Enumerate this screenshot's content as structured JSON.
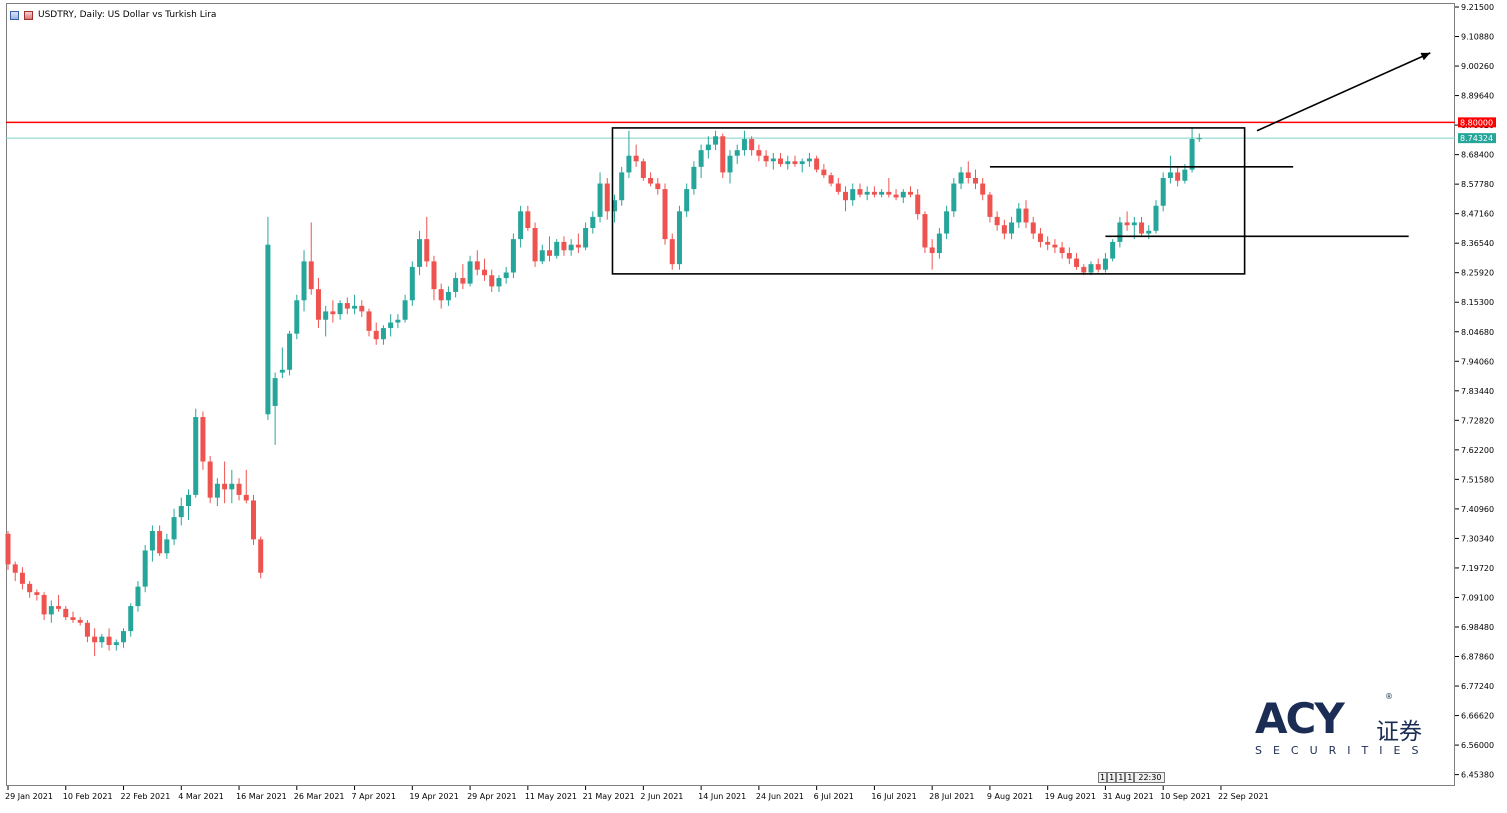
{
  "window": {
    "title": "USDTRY, Daily:  US Dollar vs Turkish Lira",
    "time_pill": [
      "1",
      "1",
      "1",
      "1",
      "22:30"
    ]
  },
  "logo": {
    "brand": "ACY",
    "registered": "®",
    "cn": "证券",
    "sub": "SECURITIES"
  },
  "colors": {
    "bull": "#26a69a",
    "bear": "#ef5350",
    "resistance": "#ff0000",
    "bid_line": "#7fd1c7",
    "annotation": "#000000",
    "axis": "#000000",
    "logo": "#1c2d55"
  },
  "chart_data": {
    "type": "candlestick",
    "symbol": "USDTRY",
    "timeframe": "Daily",
    "ylim": [
      6.42,
      9.215
    ],
    "y_ticks": [
      "9.21500",
      "9.10880",
      "9.00260",
      "8.89640",
      "8.79020",
      "8.68400",
      "8.57780",
      "8.47160",
      "8.36540",
      "8.25920",
      "8.15300",
      "8.04680",
      "7.94060",
      "7.83440",
      "7.72820",
      "7.62200",
      "7.51580",
      "7.40960",
      "7.30340",
      "7.19720",
      "7.09100",
      "6.98480",
      "6.87860",
      "6.77240",
      "6.66620",
      "6.56000",
      "6.45380"
    ],
    "x_labels": [
      "29 Jan 2021",
      "10 Feb 2021",
      "22 Feb 2021",
      "4 Mar 2021",
      "16 Mar 2021",
      "26 Mar 2021",
      "7 Apr 2021",
      "19 Apr 2021",
      "29 Apr 2021",
      "11 May 2021",
      "21 May 2021",
      "2 Jun 2021",
      "14 Jun 2021",
      "24 Jun 2021",
      "6 Jul 2021",
      "16 Jul 2021",
      "28 Jul 2021",
      "9 Aug 2021",
      "19 Aug 2021",
      "31 Aug 2021",
      "10 Sep 2021",
      "22 Sep 2021"
    ],
    "x_label_index": [
      0,
      8,
      16,
      24,
      32,
      40,
      48,
      56,
      64,
      72,
      80,
      88,
      96,
      104,
      112,
      120,
      128,
      136,
      144,
      152,
      160,
      168
    ],
    "levels": [
      {
        "price": 8.8,
        "label": "8.80000",
        "color": "#ff0000"
      },
      {
        "price": 8.74324,
        "label": "8.74324",
        "color": "#26a69a"
      }
    ],
    "annotations": {
      "box": {
        "from_index": 84,
        "to_index": 171,
        "high": 8.78,
        "low": 8.255
      },
      "segments": [
        {
          "from_index": 136,
          "to_index": 178,
          "price": 8.64
        },
        {
          "from_index": 152,
          "to_index": 194,
          "price": 8.39
        }
      ],
      "arrow": {
        "from_index": 173,
        "from_price": 8.77,
        "to_index": 197,
        "to_price": 9.05
      }
    },
    "candles": [
      [
        7.32,
        7.33,
        7.19,
        7.21
      ],
      [
        7.21,
        7.22,
        7.15,
        7.18
      ],
      [
        7.18,
        7.2,
        7.12,
        7.14
      ],
      [
        7.14,
        7.15,
        7.09,
        7.11
      ],
      [
        7.11,
        7.12,
        7.08,
        7.1
      ],
      [
        7.1,
        7.11,
        7.01,
        7.03
      ],
      [
        7.03,
        7.08,
        7.0,
        7.06
      ],
      [
        7.06,
        7.1,
        7.04,
        7.05
      ],
      [
        7.05,
        7.06,
        7.01,
        7.02
      ],
      [
        7.02,
        7.04,
        7.0,
        7.01
      ],
      [
        7.01,
        7.02,
        6.99,
        7.0
      ],
      [
        7.0,
        7.01,
        6.93,
        6.95
      ],
      [
        6.95,
        6.98,
        6.88,
        6.93
      ],
      [
        6.93,
        6.96,
        6.91,
        6.95
      ],
      [
        6.95,
        6.98,
        6.9,
        6.92
      ],
      [
        6.92,
        6.94,
        6.9,
        6.93
      ],
      [
        6.93,
        6.98,
        6.91,
        6.97
      ],
      [
        6.97,
        7.07,
        6.95,
        7.06
      ],
      [
        7.06,
        7.15,
        7.04,
        7.13
      ],
      [
        7.13,
        7.28,
        7.11,
        7.26
      ],
      [
        7.26,
        7.35,
        7.22,
        7.33
      ],
      [
        7.33,
        7.35,
        7.24,
        7.25
      ],
      [
        7.25,
        7.32,
        7.23,
        7.3
      ],
      [
        7.3,
        7.41,
        7.28,
        7.38
      ],
      [
        7.38,
        7.45,
        7.35,
        7.42
      ],
      [
        7.42,
        7.48,
        7.37,
        7.46
      ],
      [
        7.46,
        7.77,
        7.45,
        7.74
      ],
      [
        7.74,
        7.76,
        7.55,
        7.58
      ],
      [
        7.58,
        7.6,
        7.43,
        7.45
      ],
      [
        7.45,
        7.52,
        7.42,
        7.5
      ],
      [
        7.5,
        7.58,
        7.43,
        7.48
      ],
      [
        7.48,
        7.55,
        7.43,
        7.5
      ],
      [
        7.5,
        7.52,
        7.44,
        7.46
      ],
      [
        7.46,
        7.55,
        7.43,
        7.44
      ],
      [
        7.44,
        7.46,
        7.28,
        7.3
      ],
      [
        7.3,
        7.31,
        7.16,
        7.18
      ],
      [
        7.75,
        8.46,
        7.73,
        8.36
      ],
      [
        7.78,
        7.9,
        7.64,
        7.88
      ],
      [
        7.9,
        7.99,
        7.88,
        7.91
      ],
      [
        7.91,
        8.05,
        7.89,
        8.04
      ],
      [
        8.04,
        8.18,
        8.02,
        8.16
      ],
      [
        8.16,
        8.34,
        8.12,
        8.3
      ],
      [
        8.3,
        8.44,
        8.18,
        8.2
      ],
      [
        8.2,
        8.24,
        8.06,
        8.09
      ],
      [
        8.09,
        8.14,
        8.03,
        8.12
      ],
      [
        8.12,
        8.16,
        8.08,
        8.11
      ],
      [
        8.11,
        8.16,
        8.09,
        8.15
      ],
      [
        8.15,
        8.17,
        8.11,
        8.13
      ],
      [
        8.13,
        8.18,
        8.11,
        8.14
      ],
      [
        8.14,
        8.16,
        8.1,
        8.12
      ],
      [
        8.12,
        8.13,
        8.03,
        8.05
      ],
      [
        8.05,
        8.08,
        8.0,
        8.02
      ],
      [
        8.02,
        8.07,
        8.0,
        8.06
      ],
      [
        8.06,
        8.11,
        8.03,
        8.08
      ],
      [
        8.08,
        8.11,
        8.06,
        8.09
      ],
      [
        8.09,
        8.18,
        8.08,
        8.16
      ],
      [
        8.16,
        8.3,
        8.14,
        8.28
      ],
      [
        8.28,
        8.41,
        8.25,
        8.38
      ],
      [
        8.38,
        8.46,
        8.28,
        8.3
      ],
      [
        8.3,
        8.32,
        8.16,
        8.2
      ],
      [
        8.2,
        8.22,
        8.13,
        8.16
      ],
      [
        8.16,
        8.21,
        8.14,
        8.19
      ],
      [
        8.19,
        8.26,
        8.17,
        8.24
      ],
      [
        8.24,
        8.29,
        8.2,
        8.22
      ],
      [
        8.22,
        8.32,
        8.21,
        8.3
      ],
      [
        8.3,
        8.34,
        8.25,
        8.27
      ],
      [
        8.27,
        8.31,
        8.23,
        8.25
      ],
      [
        8.25,
        8.27,
        8.19,
        8.21
      ],
      [
        8.21,
        8.25,
        8.19,
        8.24
      ],
      [
        8.24,
        8.28,
        8.22,
        8.26
      ],
      [
        8.26,
        8.4,
        8.24,
        8.38
      ],
      [
        8.38,
        8.5,
        8.35,
        8.48
      ],
      [
        8.48,
        8.5,
        8.41,
        8.42
      ],
      [
        8.42,
        8.44,
        8.28,
        8.3
      ],
      [
        8.3,
        8.36,
        8.29,
        8.34
      ],
      [
        8.34,
        8.39,
        8.3,
        8.32
      ],
      [
        8.32,
        8.38,
        8.31,
        8.37
      ],
      [
        8.37,
        8.39,
        8.32,
        8.34
      ],
      [
        8.34,
        8.38,
        8.32,
        8.36
      ],
      [
        8.36,
        8.4,
        8.33,
        8.35
      ],
      [
        8.35,
        8.44,
        8.34,
        8.42
      ],
      [
        8.42,
        8.48,
        8.4,
        8.46
      ],
      [
        8.46,
        8.62,
        8.44,
        8.58
      ],
      [
        8.58,
        8.6,
        8.45,
        8.48
      ],
      [
        8.48,
        8.54,
        8.44,
        8.52
      ],
      [
        8.52,
        8.64,
        8.5,
        8.62
      ],
      [
        8.62,
        8.77,
        8.6,
        8.68
      ],
      [
        8.68,
        8.72,
        8.64,
        8.66
      ],
      [
        8.66,
        8.67,
        8.59,
        8.6
      ],
      [
        8.6,
        8.62,
        8.57,
        8.58
      ],
      [
        8.58,
        8.6,
        8.54,
        8.56
      ],
      [
        8.56,
        8.58,
        8.36,
        8.38
      ],
      [
        8.38,
        8.4,
        8.27,
        8.29
      ],
      [
        8.29,
        8.5,
        8.27,
        8.48
      ],
      [
        8.48,
        8.58,
        8.46,
        8.56
      ],
      [
        8.56,
        8.66,
        8.54,
        8.64
      ],
      [
        8.64,
        8.72,
        8.6,
        8.7
      ],
      [
        8.7,
        8.75,
        8.67,
        8.72
      ],
      [
        8.72,
        8.77,
        8.7,
        8.75
      ],
      [
        8.75,
        8.76,
        8.6,
        8.62
      ],
      [
        8.62,
        8.7,
        8.58,
        8.68
      ],
      [
        8.68,
        8.72,
        8.65,
        8.7
      ],
      [
        8.7,
        8.77,
        8.68,
        8.74
      ],
      [
        8.74,
        8.75,
        8.68,
        8.7
      ],
      [
        8.7,
        8.72,
        8.66,
        8.68
      ],
      [
        8.68,
        8.7,
        8.64,
        8.66
      ],
      [
        8.66,
        8.69,
        8.63,
        8.67
      ],
      [
        8.67,
        8.69,
        8.64,
        8.65
      ],
      [
        8.65,
        8.68,
        8.63,
        8.66
      ],
      [
        8.66,
        8.68,
        8.64,
        8.65
      ],
      [
        8.65,
        8.67,
        8.62,
        8.66
      ],
      [
        8.66,
        8.69,
        8.64,
        8.67
      ],
      [
        8.67,
        8.68,
        8.62,
        8.63
      ],
      [
        8.63,
        8.65,
        8.6,
        8.61
      ],
      [
        8.61,
        8.62,
        8.57,
        8.58
      ],
      [
        8.58,
        8.6,
        8.54,
        8.55
      ],
      [
        8.55,
        8.57,
        8.48,
        8.52
      ],
      [
        8.52,
        8.58,
        8.5,
        8.56
      ],
      [
        8.56,
        8.58,
        8.53,
        8.54
      ],
      [
        8.54,
        8.57,
        8.52,
        8.55
      ],
      [
        8.55,
        8.57,
        8.53,
        8.54
      ],
      [
        8.54,
        8.56,
        8.53,
        8.55
      ],
      [
        8.55,
        8.6,
        8.53,
        8.54
      ],
      [
        8.54,
        8.56,
        8.52,
        8.53
      ],
      [
        8.53,
        8.56,
        8.51,
        8.55
      ],
      [
        8.55,
        8.57,
        8.53,
        8.54
      ],
      [
        8.54,
        8.56,
        8.45,
        8.47
      ],
      [
        8.47,
        8.48,
        8.33,
        8.35
      ],
      [
        8.35,
        8.38,
        8.27,
        8.33
      ],
      [
        8.33,
        8.42,
        8.31,
        8.4
      ],
      [
        8.4,
        8.5,
        8.38,
        8.48
      ],
      [
        8.48,
        8.6,
        8.46,
        8.58
      ],
      [
        8.58,
        8.64,
        8.56,
        8.62
      ],
      [
        8.62,
        8.66,
        8.58,
        8.6
      ],
      [
        8.6,
        8.63,
        8.56,
        8.58
      ],
      [
        8.58,
        8.6,
        8.52,
        8.54
      ],
      [
        8.54,
        8.55,
        8.44,
        8.46
      ],
      [
        8.46,
        8.48,
        8.41,
        8.43
      ],
      [
        8.43,
        8.45,
        8.38,
        8.4
      ],
      [
        8.4,
        8.46,
        8.38,
        8.44
      ],
      [
        8.44,
        8.51,
        8.42,
        8.49
      ],
      [
        8.49,
        8.52,
        8.42,
        8.44
      ],
      [
        8.44,
        8.46,
        8.38,
        8.4
      ],
      [
        8.4,
        8.42,
        8.35,
        8.37
      ],
      [
        8.37,
        8.39,
        8.34,
        8.36
      ],
      [
        8.36,
        8.38,
        8.33,
        8.35
      ],
      [
        8.35,
        8.37,
        8.31,
        8.33
      ],
      [
        8.33,
        8.35,
        8.29,
        8.31
      ],
      [
        8.31,
        8.33,
        8.27,
        8.28
      ],
      [
        8.28,
        8.29,
        8.25,
        8.26
      ],
      [
        8.26,
        8.3,
        8.25,
        8.29
      ],
      [
        8.29,
        8.31,
        8.26,
        8.27
      ],
      [
        8.27,
        8.33,
        8.26,
        8.31
      ],
      [
        8.31,
        8.38,
        8.3,
        8.37
      ],
      [
        8.37,
        8.46,
        8.35,
        8.44
      ],
      [
        8.44,
        8.48,
        8.41,
        8.43
      ],
      [
        8.43,
        8.46,
        8.38,
        8.44
      ],
      [
        8.44,
        8.46,
        8.39,
        8.4
      ],
      [
        8.4,
        8.43,
        8.38,
        8.41
      ],
      [
        8.41,
        8.52,
        8.4,
        8.5
      ],
      [
        8.5,
        8.62,
        8.48,
        8.6
      ],
      [
        8.6,
        8.68,
        8.58,
        8.62
      ],
      [
        8.62,
        8.64,
        8.57,
        8.59
      ],
      [
        8.59,
        8.65,
        8.58,
        8.63
      ],
      [
        8.63,
        8.78,
        8.62,
        8.74
      ],
      [
        8.74,
        8.76,
        8.73,
        8.743
      ]
    ]
  }
}
